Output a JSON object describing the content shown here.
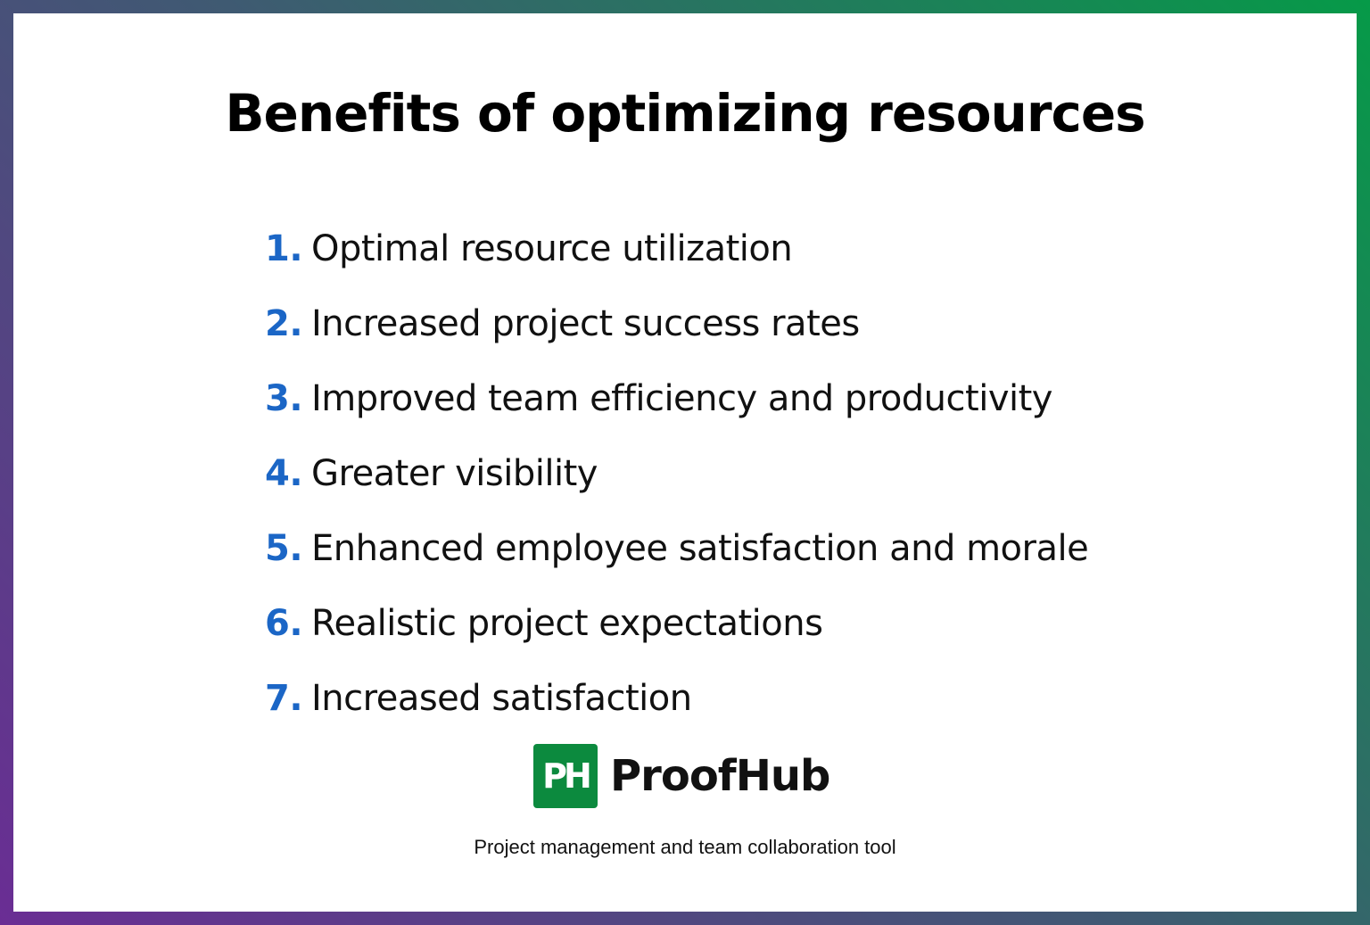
{
  "title": "Benefits of optimizing resources",
  "items": [
    {
      "num": "1.",
      "label": "Optimal resource utilization"
    },
    {
      "num": "2.",
      "label": "Increased project success rates"
    },
    {
      "num": "3.",
      "label": "Improved team efficiency and productivity"
    },
    {
      "num": "4.",
      "label": "Greater visibility"
    },
    {
      "num": "5.",
      "label": "Enhanced employee satisfaction and morale"
    },
    {
      "num": "6.",
      "label": "Realistic project expectations"
    },
    {
      "num": "7.",
      "label": "Increased satisfaction"
    }
  ],
  "logo": {
    "mark": "PH",
    "name": "ProofHub",
    "tagline": "Project management and team collaboration tool"
  },
  "colors": {
    "number": "#1b66c6",
    "logo": "#0c8a3e",
    "border_start": "#6a2d94",
    "border_end": "#069a48"
  }
}
